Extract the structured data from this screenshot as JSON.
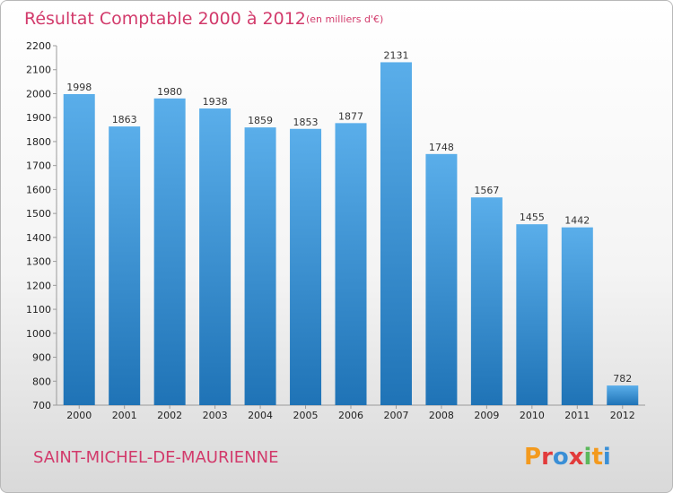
{
  "header": {
    "title": "Résultat Comptable 2000 à 2012",
    "subtitle": "(en milliers d'€)"
  },
  "footer": {
    "city": "SAINT-MICHEL-DE-MAURIENNE",
    "logo": "Proxiti"
  },
  "colors": {
    "bar_top": "#5aaeea",
    "bar_bottom": "#1f73b6",
    "accent": "#d23a6b"
  },
  "chart_data": {
    "type": "bar",
    "title": "Résultat Comptable 2000 à 2012",
    "subtitle": "(en milliers d'€)",
    "xlabel": "",
    "ylabel": "",
    "categories": [
      "2000",
      "2001",
      "2002",
      "2003",
      "2004",
      "2005",
      "2006",
      "2007",
      "2008",
      "2009",
      "2010",
      "2011",
      "2012"
    ],
    "values": [
      1998,
      1863,
      1980,
      1938,
      1859,
      1853,
      1877,
      2131,
      1748,
      1567,
      1455,
      1442,
      782
    ],
    "ylim": [
      700,
      2200
    ],
    "yticks": [
      700,
      800,
      900,
      1000,
      1100,
      1200,
      1300,
      1400,
      1500,
      1600,
      1700,
      1800,
      1900,
      2000,
      2100,
      2200
    ],
    "grid": false,
    "legend": "none"
  }
}
